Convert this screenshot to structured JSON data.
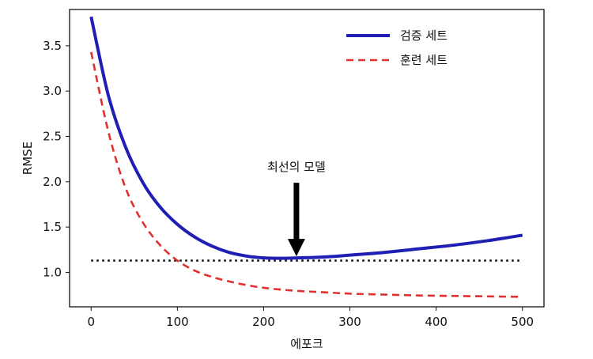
{
  "chart_data": {
    "type": "line",
    "xlabel": "에포크",
    "ylabel": "RMSE",
    "xlim": [
      -25,
      525
    ],
    "ylim": [
      0.62,
      3.9
    ],
    "x_ticks": [
      0,
      100,
      200,
      300,
      400,
      500
    ],
    "y_ticks": [
      1.0,
      1.5,
      2.0,
      2.5,
      3.0,
      3.5
    ],
    "x_tick_labels": [
      "0",
      "100",
      "200",
      "300",
      "400",
      "500"
    ],
    "y_tick_labels": [
      "1.0",
      "1.5",
      "2.0",
      "2.5",
      "3.0",
      "3.5"
    ],
    "grid": false,
    "legend_position": "top-right",
    "series": [
      {
        "name": "검증 세트",
        "color": "#1f1fb4",
        "style": "solid",
        "x": [
          0,
          20,
          40,
          60,
          80,
          100,
          120,
          140,
          160,
          180,
          200,
          220,
          240,
          260,
          280,
          300,
          340,
          380,
          420,
          460,
          500
        ],
        "y": [
          3.82,
          2.95,
          2.38,
          1.99,
          1.72,
          1.53,
          1.39,
          1.29,
          1.22,
          1.18,
          1.16,
          1.155,
          1.16,
          1.165,
          1.175,
          1.19,
          1.22,
          1.26,
          1.3,
          1.35,
          1.41
        ]
      },
      {
        "name": "훈련 세트",
        "color": "#e03030",
        "style": "dashed",
        "x": [
          0,
          20,
          40,
          60,
          80,
          100,
          120,
          140,
          160,
          180,
          200,
          220,
          240,
          260,
          280,
          300,
          340,
          380,
          420,
          460,
          500
        ],
        "y": [
          3.43,
          2.55,
          1.93,
          1.55,
          1.3,
          1.13,
          1.02,
          0.95,
          0.9,
          0.86,
          0.83,
          0.81,
          0.795,
          0.785,
          0.775,
          0.765,
          0.755,
          0.745,
          0.74,
          0.735,
          0.73
        ]
      }
    ],
    "reference_line": {
      "y": 1.13,
      "style": "dotted",
      "color": "#111111"
    },
    "annotation": {
      "text": "최선의 모델",
      "x": 238,
      "y": 1.16
    }
  }
}
